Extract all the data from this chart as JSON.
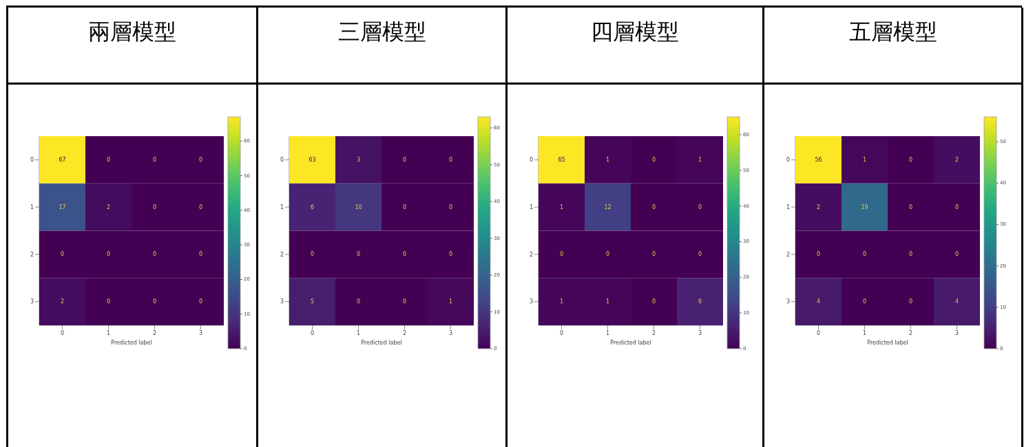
{
  "chart_data": [
    {
      "type": "heatmap",
      "title": "兩層模型",
      "xlabel": "Predicted label",
      "categories": [
        "0",
        "1",
        "2",
        "3"
      ],
      "y_categories": [
        "0",
        "1",
        "2",
        "3"
      ],
      "cells": [
        [
          67,
          0,
          0,
          0
        ],
        [
          17,
          2,
          0,
          0
        ],
        [
          0,
          0,
          0,
          0
        ],
        [
          2,
          0,
          0,
          0
        ]
      ],
      "clim": [
        0,
        67
      ],
      "cticks": [
        0,
        10,
        20,
        30,
        40,
        50,
        60
      ],
      "data_labels": true
    },
    {
      "type": "heatmap",
      "title": "三層模型",
      "xlabel": "Predicted label",
      "categories": [
        "0",
        "1",
        "2",
        "3"
      ],
      "y_categories": [
        "0",
        "1",
        "2",
        "3"
      ],
      "cells": [
        [
          63,
          3,
          0,
          0
        ],
        [
          6,
          10,
          0,
          0
        ],
        [
          0,
          0,
          0,
          0
        ],
        [
          5,
          0,
          0,
          1
        ]
      ],
      "clim": [
        0,
        63
      ],
      "cticks": [
        0,
        10,
        20,
        30,
        40,
        50,
        60
      ],
      "data_labels": true
    },
    {
      "type": "heatmap",
      "title": "四層模型",
      "xlabel": "Predicted label",
      "categories": [
        "0",
        "1",
        "2",
        "3"
      ],
      "y_categories": [
        "0",
        "1",
        "2",
        "3"
      ],
      "cells": [
        [
          65,
          1,
          0,
          1
        ],
        [
          1,
          12,
          0,
          0
        ],
        [
          0,
          0,
          0,
          0
        ],
        [
          1,
          1,
          0,
          6
        ]
      ],
      "clim": [
        0,
        65
      ],
      "cticks": [
        0,
        10,
        20,
        30,
        40,
        50,
        60
      ],
      "data_labels": true
    },
    {
      "type": "heatmap",
      "title": "五層模型",
      "xlabel": "Predicted label",
      "categories": [
        "0",
        "1",
        "2",
        "3"
      ],
      "y_categories": [
        "0",
        "1",
        "2",
        "3"
      ],
      "cells": [
        [
          56,
          1,
          0,
          2
        ],
        [
          2,
          19,
          0,
          0
        ],
        [
          0,
          0,
          0,
          0
        ],
        [
          4,
          0,
          0,
          4
        ]
      ],
      "clim": [
        0,
        56
      ],
      "cticks": [
        0,
        10,
        20,
        30,
        40,
        50
      ],
      "data_labels": true
    }
  ]
}
